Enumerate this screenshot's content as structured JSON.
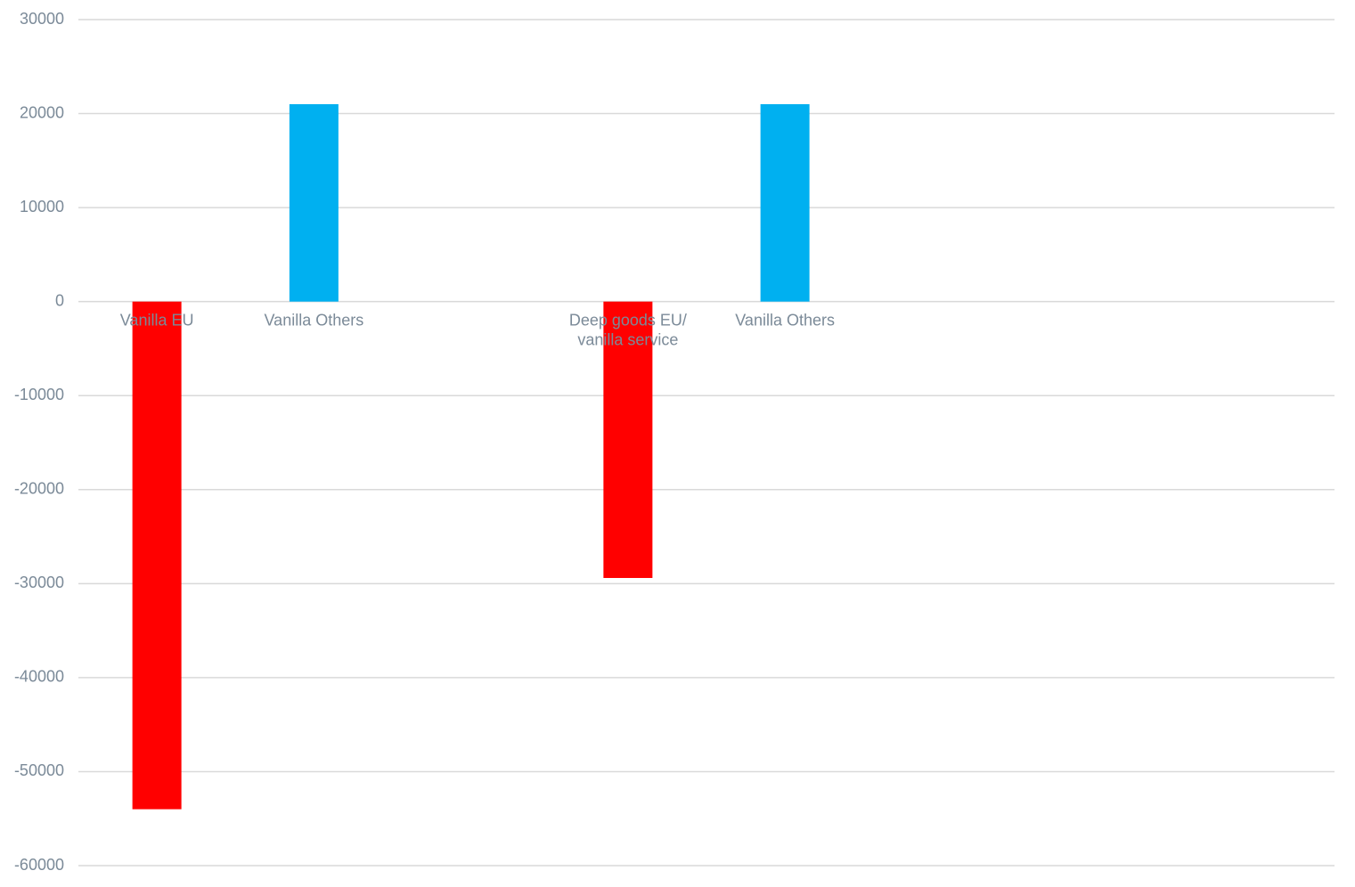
{
  "chart_data": {
    "type": "bar",
    "categories": [
      "Vanilla EU",
      "Vanilla Others",
      null,
      "Deep goods EU/ vanilla service",
      "Vanilla Others",
      null,
      null,
      null
    ],
    "values": [
      -54000,
      21000,
      null,
      -29400,
      21000,
      null,
      null,
      null
    ],
    "colors": [
      "#ff0000",
      "#00b0f0",
      null,
      "#ff0000",
      "#00b0f0",
      null,
      null,
      null
    ],
    "ylim": [
      -60000,
      30000
    ],
    "yticks": [
      -60000,
      -50000,
      -40000,
      -30000,
      -20000,
      -10000,
      0,
      10000,
      20000,
      30000
    ],
    "grid": true
  }
}
